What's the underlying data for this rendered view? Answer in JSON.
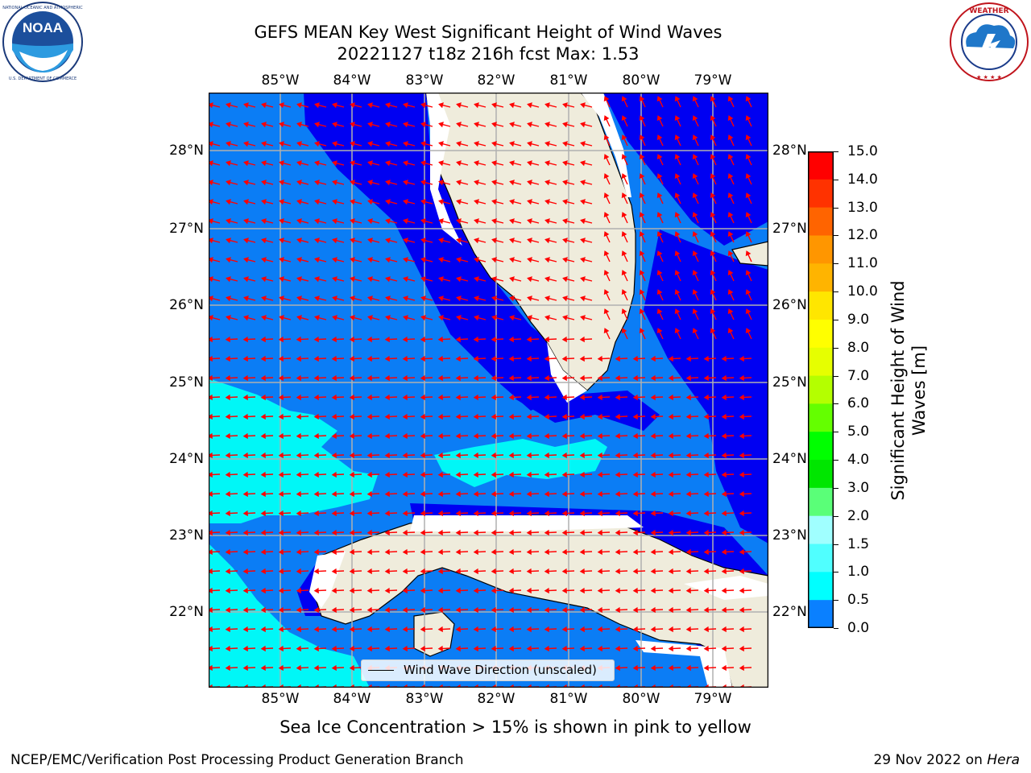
{
  "header": {
    "title_line1": "GEFS MEAN Key West Significant Height of Wind Waves",
    "title_line2": "20221127 t18z 216h fcst   Max: 1.53"
  },
  "logos": {
    "left": {
      "text": "NOAA",
      "ring_text": "NATIONAL OCEANIC AND ATMOSPHERIC ADMINISTRATION · U.S. DEPARTMENT OF COMMERCE"
    },
    "right": {
      "ring_text": "NATIONAL WEATHER SERVICE"
    }
  },
  "map": {
    "lon_ticks": [
      "85°W",
      "84°W",
      "83°W",
      "82°W",
      "81°W",
      "80°W",
      "79°W"
    ],
    "lat_ticks": [
      "28°N",
      "27°N",
      "26°N",
      "25°N",
      "24°N",
      "23°N",
      "22°N"
    ],
    "colors": {
      "land": "#efecdc",
      "lvl0": "#0000f2",
      "lvl1": "#0b7df5",
      "lvl2": "#00f7f7",
      "arrow": "#ff0000",
      "grid": "#b0b0b0"
    }
  },
  "colorbar": {
    "label": "Significant Height of Wind\nWaves [m]",
    "ticks": [
      "15.0",
      "14.0",
      "13.0",
      "12.0",
      "11.0",
      "10.0",
      "9.0",
      "8.0",
      "7.0",
      "6.0",
      "5.0",
      "4.0",
      "3.0",
      "2.0",
      "1.5",
      "1.0",
      "0.5",
      "0.0"
    ],
    "colors": [
      "#ff0000",
      "#ff3200",
      "#ff6400",
      "#ff9600",
      "#ffb400",
      "#ffe600",
      "#ffff00",
      "#e6ff00",
      "#b4ff00",
      "#64ff00",
      "#00ff00",
      "#00e600",
      "#5aff78",
      "#a0ffff",
      "#50ffff",
      "#00ffff",
      "#0a80ff",
      "#0000ff"
    ]
  },
  "legend": {
    "label": "Wind Wave Direction (unscaled)"
  },
  "caption": "Sea Ice Concentration > 15% is shown in pink to yellow",
  "footer": {
    "left": "NCEP/EMC/Verification Post Processing Product Generation Branch",
    "right_prefix": "29 Nov 2022 on ",
    "right_host": "Hera"
  }
}
